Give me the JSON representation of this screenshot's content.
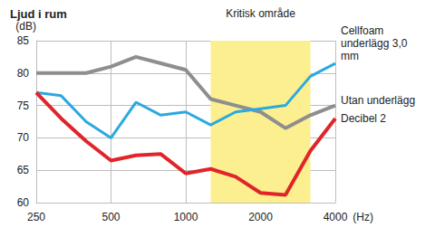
{
  "chart_data": {
    "type": "line",
    "title": "Ljud i rum",
    "x_label": "(Hz)",
    "y_label": "(dB)",
    "log": "x",
    "grid": true,
    "x": [
      250,
      315,
      400,
      500,
      630,
      800,
      1000,
      1250,
      1600,
      2000,
      2500,
      3150,
      4000
    ],
    "xlim": [
      250,
      4000
    ],
    "xticks": [
      250,
      500,
      1000,
      2000,
      4000
    ],
    "ylim": [
      60,
      85
    ],
    "yticks": [
      60,
      65,
      70,
      75,
      80,
      85
    ],
    "highlight": {
      "label": "Kritisk område",
      "range": [
        1250,
        3150
      ],
      "color": "#fcef8f"
    },
    "series": [
      {
        "name": "Utan underlägg",
        "color": "#8e8e8e",
        "values": [
          80,
          80,
          80,
          81,
          82.5,
          81.5,
          80.5,
          76,
          75,
          74,
          71.5,
          73.5,
          75
        ]
      },
      {
        "name": "Cellfoam underlägg 3,0 mm",
        "color": "#2aa9e0",
        "values": [
          77,
          76.5,
          72.5,
          70,
          75.5,
          73.5,
          74,
          72,
          74,
          74.5,
          75,
          79.5,
          81.5
        ]
      },
      {
        "name": "Decibel 2",
        "color": "#e0242a",
        "values": [
          77,
          73,
          69.5,
          66.5,
          67.3,
          67.5,
          64.5,
          65.2,
          64,
          61.5,
          61.2,
          68,
          73
        ]
      }
    ]
  }
}
